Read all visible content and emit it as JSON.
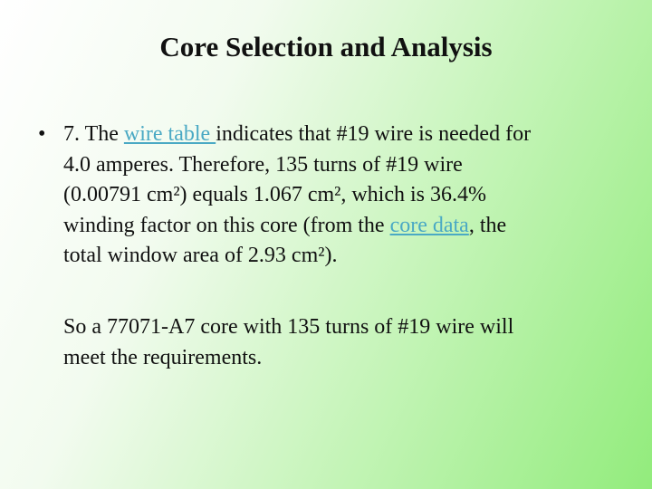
{
  "title": "Core Selection and Analysis",
  "paragraphs": [
    {
      "bullet": true,
      "lines": [
        [
          {
            "text": "7. The "
          },
          {
            "text": "wire table ",
            "link": true
          },
          {
            "text": "indicates that #19 wire is needed for"
          }
        ],
        [
          {
            "text": "4.0 amperes. Therefore, 135 turns of #19 wire"
          }
        ],
        [
          {
            "text": "(0.00791 cm²) equals 1.067 cm², which is 36.4%"
          }
        ],
        [
          {
            "text": "winding factor on this core (from the "
          },
          {
            "text": "core data",
            "link": true
          },
          {
            "text": ", the"
          }
        ],
        [
          {
            "text": "total window area of 2.93 cm²)."
          }
        ]
      ]
    },
    {
      "bullet": false,
      "lines": [
        [
          {
            "text": "So a 77071-A7 core with 135 turns of #19 wire will"
          }
        ],
        [
          {
            "text": "meet the requirements."
          }
        ]
      ]
    }
  ]
}
